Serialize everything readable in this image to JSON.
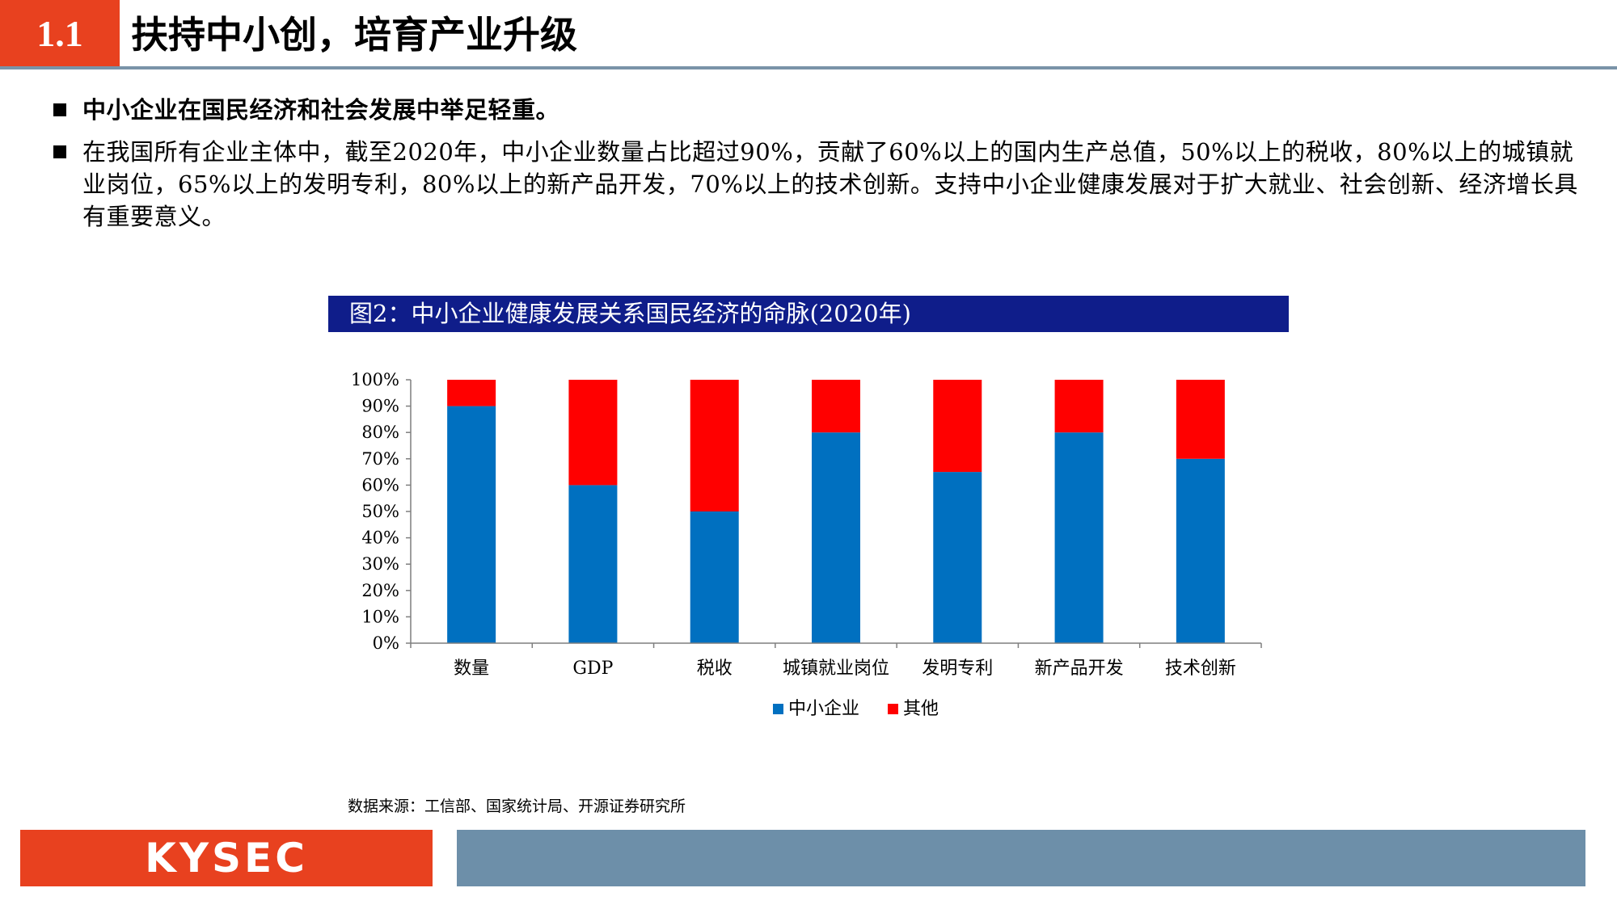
{
  "header": {
    "section_number": "1.1",
    "title": "扶持中小创，培育产业升级"
  },
  "bullets": [
    {
      "text": "中小企业在国民经济和社会发展中举足轻重。"
    },
    {
      "text": "在我国所有企业主体中，截至2020年，中小企业数量占比超过90%，贡献了60%以上的国内生产总值，50%以上的税收，80%以上的城镇就业岗位，65%以上的发明专利，80%以上的新产品开发，70%以上的技术创新。支持中小企业健康发展对于扩大就业、社会创新、经济增长具有重要意义。"
    }
  ],
  "figure": {
    "caption": "图2：中小企业健康发展关系国民经济的命脉(2020年)",
    "source": "数据来源：工信部、国家统计局、开源证券研究所"
  },
  "chart_data": {
    "type": "bar",
    "stacked": true,
    "categories": [
      "数量",
      "GDP",
      "税收",
      "城镇就业岗位",
      "发明专利",
      "新产品开发",
      "技术创新"
    ],
    "series": [
      {
        "name": "中小企业",
        "color": "#0070c0",
        "values": [
          90,
          60,
          50,
          80,
          65,
          80,
          70
        ]
      },
      {
        "name": "其他",
        "color": "#ff0000",
        "values": [
          10,
          40,
          50,
          20,
          35,
          20,
          30
        ]
      }
    ],
    "y_ticks": [
      "0%",
      "10%",
      "20%",
      "30%",
      "40%",
      "50%",
      "60%",
      "70%",
      "80%",
      "90%",
      "100%"
    ],
    "ylim": [
      0,
      100
    ],
    "grid": false,
    "legend_position": "bottom"
  },
  "footer": {
    "logo_text": "KYSEC"
  }
}
